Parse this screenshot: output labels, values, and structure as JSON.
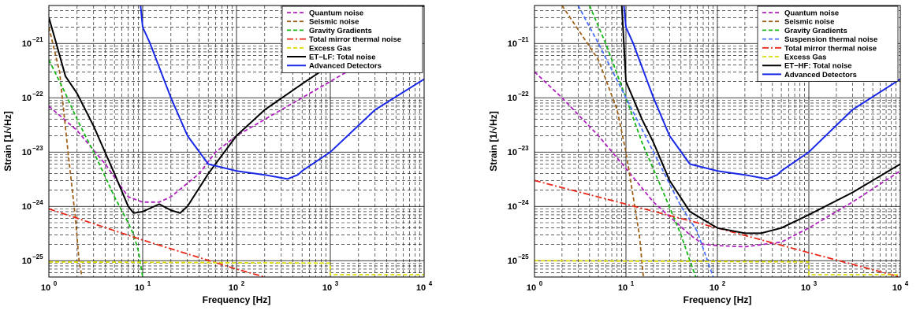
{
  "chart_data": [
    {
      "type": "line",
      "title": "",
      "xlabel": "Frequency [Hz]",
      "ylabel": "Strain [1/√Hz]",
      "xscale": "log",
      "yscale": "log",
      "xlim": [
        1,
        10000
      ],
      "ylim": [
        5e-26,
        5e-21
      ],
      "x_ticks": [
        {
          "base": "10",
          "exp": "0"
        },
        {
          "base": "10",
          "exp": "1"
        },
        {
          "base": "10",
          "exp": "2"
        },
        {
          "base": "10",
          "exp": "3"
        },
        {
          "base": "10",
          "exp": "4"
        }
      ],
      "y_ticks": [
        {
          "base": "10",
          "exp": "−21"
        },
        {
          "base": "10",
          "exp": "−22"
        },
        {
          "base": "10",
          "exp": "−23"
        },
        {
          "base": "10",
          "exp": "−24"
        },
        {
          "base": "10",
          "exp": "−25"
        }
      ],
      "grid": true,
      "legend_position": "top-right",
      "series": [
        {
          "name": "Quantum noise",
          "color": "#b020c0",
          "style": "dashed",
          "points": [
            [
              1,
              7e-23
            ],
            [
              2,
              2.5e-23
            ],
            [
              4,
              6e-24
            ],
            [
              7,
              1.5e-24
            ],
            [
              10,
              1.2e-24
            ],
            [
              15,
              1.2e-24
            ],
            [
              20,
              1.5e-24
            ],
            [
              40,
              4e-24
            ],
            [
              60,
              1e-23
            ],
            [
              100,
              2e-23
            ],
            [
              300,
              6e-23
            ],
            [
              1000,
              2e-22
            ],
            [
              10000,
              2e-21
            ]
          ]
        },
        {
          "name": "Seismic noise",
          "color": "#a0621a",
          "style": "dashed",
          "points": [
            [
              1,
              2e-21
            ],
            [
              1.3,
              3e-22
            ],
            [
              1.6,
              1e-23
            ],
            [
              1.9,
              7e-25
            ],
            [
              2.1,
              1e-25
            ],
            [
              2.25,
              5e-26
            ]
          ]
        },
        {
          "name": "Gravity Gradients",
          "color": "#18b818",
          "style": "dashed",
          "points": [
            [
              1,
              5e-22
            ],
            [
              1.5,
              1.2e-22
            ],
            [
              2,
              4e-23
            ],
            [
              3,
              1e-23
            ],
            [
              4,
              3.5e-24
            ],
            [
              5,
              1.5e-24
            ],
            [
              7,
              5e-25
            ],
            [
              8,
              3e-25
            ],
            [
              9,
              1.5e-25
            ],
            [
              10,
              5e-26
            ]
          ]
        },
        {
          "name": "Total mirror thermal noise",
          "color": "#e82818",
          "style": "dashdot",
          "points": [
            [
              1,
              9e-25
            ],
            [
              10,
              2.4e-25
            ],
            [
              100,
              7e-26
            ],
            [
              200,
              5e-26
            ]
          ]
        },
        {
          "name": "Excess Gas",
          "color": "#dcdc00",
          "style": "dashed",
          "points": [
            [
              1,
              9.5e-26
            ],
            [
              1000,
              9e-26
            ],
            [
              1000,
              5.5e-26
            ],
            [
              10000,
              5.5e-26
            ]
          ]
        },
        {
          "name": "ET−LF: Total noise",
          "color": "#000000",
          "style": "solid",
          "points": [
            [
              1,
              3e-21
            ],
            [
              1.2,
              1e-21
            ],
            [
              1.5,
              2.5e-22
            ],
            [
              2,
              1.2e-22
            ],
            [
              3,
              3e-23
            ],
            [
              5,
              4e-24
            ],
            [
              7,
              1e-24
            ],
            [
              8,
              7.5e-25
            ],
            [
              10,
              8e-25
            ],
            [
              15,
              1.1e-24
            ],
            [
              20,
              8.5e-25
            ],
            [
              25,
              7.5e-25
            ],
            [
              30,
              1e-24
            ],
            [
              50,
              4e-24
            ],
            [
              100,
              2e-23
            ],
            [
              200,
              6e-23
            ],
            [
              500,
              1.8e-22
            ],
            [
              1000,
              4e-22
            ],
            [
              3000,
              1.5e-21
            ],
            [
              10000,
              5e-21
            ]
          ]
        },
        {
          "name": "Advanced Detectors",
          "color": "#1a28e8",
          "style": "solid",
          "points": [
            [
              9.5,
              5e-21
            ],
            [
              10,
              2e-21
            ],
            [
              12,
              1e-21
            ],
            [
              20,
              1e-22
            ],
            [
              30,
              2e-23
            ],
            [
              50,
              6e-24
            ],
            [
              100,
              4.5e-24
            ],
            [
              200,
              3.8e-24
            ],
            [
              350,
              3.2e-24
            ],
            [
              450,
              3.8e-24
            ],
            [
              500,
              4.5e-24
            ],
            [
              1000,
              1e-23
            ],
            [
              3000,
              6e-23
            ],
            [
              10000,
              2.2e-22
            ]
          ]
        }
      ]
    },
    {
      "type": "line",
      "title": "",
      "xlabel": "Frequency [Hz]",
      "ylabel": "Strain [1/√Hz]",
      "xscale": "log",
      "yscale": "log",
      "xlim": [
        1,
        10000
      ],
      "ylim": [
        5e-26,
        5e-21
      ],
      "x_ticks": [
        {
          "base": "10",
          "exp": "0"
        },
        {
          "base": "10",
          "exp": "1"
        },
        {
          "base": "10",
          "exp": "2"
        },
        {
          "base": "10",
          "exp": "3"
        },
        {
          "base": "10",
          "exp": "4"
        }
      ],
      "y_ticks": [
        {
          "base": "10",
          "exp": "−21"
        },
        {
          "base": "10",
          "exp": "−22"
        },
        {
          "base": "10",
          "exp": "−23"
        },
        {
          "base": "10",
          "exp": "−24"
        },
        {
          "base": "10",
          "exp": "−25"
        }
      ],
      "grid": true,
      "legend_position": "top-right",
      "series": [
        {
          "name": "Quantum noise",
          "color": "#b020c0",
          "style": "dashed",
          "points": [
            [
              1,
              3e-22
            ],
            [
              2,
              1e-22
            ],
            [
              5,
              2e-23
            ],
            [
              10,
              5e-24
            ],
            [
              20,
              1.2e-24
            ],
            [
              50,
              3e-25
            ],
            [
              70,
              2e-25
            ],
            [
              100,
              1.9e-25
            ],
            [
              200,
              1.8e-25
            ],
            [
              500,
              2.2e-25
            ],
            [
              1000,
              4e-25
            ],
            [
              3000,
              1.2e-24
            ],
            [
              10000,
              4.5e-24
            ]
          ]
        },
        {
          "name": "Seismic noise",
          "color": "#a0621a",
          "style": "dashed",
          "points": [
            [
              2,
              5e-21
            ],
            [
              5,
              5e-22
            ],
            [
              8,
              6e-23
            ],
            [
              10,
              1e-23
            ],
            [
              12,
              1.5e-24
            ],
            [
              14,
              3e-25
            ],
            [
              15.5,
              5e-26
            ]
          ]
        },
        {
          "name": "Gravity Gradients",
          "color": "#18b818",
          "style": "dashed",
          "points": [
            [
              4,
              5e-21
            ],
            [
              6,
              1e-21
            ],
            [
              10,
              1e-22
            ],
            [
              15,
              1.5e-23
            ],
            [
              25,
              2e-24
            ],
            [
              40,
              3e-25
            ],
            [
              50,
              1e-25
            ],
            [
              58,
              5e-26
            ]
          ]
        },
        {
          "name": "Suspension thermal noise",
          "color": "#4a70ff",
          "style": "dashed",
          "points": [
            [
              3,
              5e-21
            ],
            [
              5,
              1e-21
            ],
            [
              10,
              1e-22
            ],
            [
              20,
              1e-23
            ],
            [
              40,
              1e-24
            ],
            [
              60,
              3.5e-25
            ],
            [
              90,
              5e-26
            ]
          ]
        },
        {
          "name": "Total mirror thermal noise",
          "color": "#e82818",
          "style": "dashdot",
          "points": [
            [
              1,
              3e-24
            ],
            [
              10,
              1.1e-24
            ],
            [
              100,
              4e-25
            ],
            [
              1000,
              1.4e-25
            ],
            [
              10000,
              5e-26
            ]
          ]
        },
        {
          "name": "Excess Gas",
          "color": "#dcdc00",
          "style": "dashed",
          "points": [
            [
              1,
              1e-25
            ],
            [
              1000,
              9.5e-26
            ],
            [
              1000,
              5.5e-26
            ],
            [
              10000,
              5.5e-26
            ]
          ]
        },
        {
          "name": "ET−HF: Total noise",
          "color": "#000000",
          "style": "solid",
          "points": [
            [
              9,
              5e-21
            ],
            [
              10,
              2e-22
            ],
            [
              15,
              4e-23
            ],
            [
              20,
              1.5e-23
            ],
            [
              30,
              3e-24
            ],
            [
              50,
              8e-25
            ],
            [
              100,
              4e-25
            ],
            [
              200,
              3.2e-25
            ],
            [
              300,
              3.2e-25
            ],
            [
              500,
              4e-25
            ],
            [
              1000,
              7e-25
            ],
            [
              3000,
              1.8e-24
            ],
            [
              10000,
              6e-24
            ]
          ]
        },
        {
          "name": "Advanced Detectors",
          "color": "#1a28e8",
          "style": "solid",
          "points": [
            [
              9.5,
              5e-21
            ],
            [
              10,
              2e-21
            ],
            [
              12,
              1e-21
            ],
            [
              20,
              1e-22
            ],
            [
              30,
              2e-23
            ],
            [
              50,
              6e-24
            ],
            [
              100,
              4.5e-24
            ],
            [
              200,
              3.8e-24
            ],
            [
              350,
              3.2e-24
            ],
            [
              450,
              3.8e-24
            ],
            [
              500,
              4.5e-24
            ],
            [
              1000,
              1e-23
            ],
            [
              3000,
              6e-23
            ],
            [
              10000,
              2.2e-22
            ]
          ]
        }
      ]
    }
  ]
}
